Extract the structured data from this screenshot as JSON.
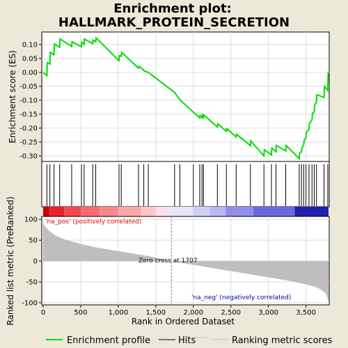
{
  "title_line1": "Enrichment plot:",
  "title_line2": "HALLMARK_PROTEIN_SECRETION",
  "zero_cross_label": "Zero cross at 1707",
  "pos_label": "'na_pos' (positively correlated)",
  "neg_label": "'na_neg' (negatively correlated)",
  "legend": {
    "enrichment": "Enrichment profile",
    "hits": "Hits",
    "ranking": "Ranking metric scores"
  },
  "colors": {
    "enrichment_line": "#00dd00",
    "metric_fill": "#bebebe",
    "pos_text": "#dd0000",
    "neg_text": "#0000aa",
    "zero_line": "#808080"
  },
  "chart_data": [
    {
      "type": "line",
      "name": "enrichment-profile",
      "ylabel": "Enrichment score (ES)",
      "xlim": [
        0,
        3800
      ],
      "ylim": [
        -0.32,
        0.145
      ],
      "yticks": [
        0.1,
        0.05,
        0.0,
        -0.05,
        -0.1,
        -0.15,
        -0.2,
        -0.25,
        -0.3
      ],
      "ytick_labels": [
        "0.10",
        "0.05",
        "0.00",
        "-0.05",
        "-0.10",
        "-0.15",
        "-0.20",
        "-0.25",
        "-0.30"
      ],
      "x": [
        0,
        50,
        55,
        90,
        95,
        145,
        150,
        220,
        225,
        380,
        385,
        510,
        515,
        545,
        550,
        660,
        665,
        700,
        705,
        1010,
        1015,
        1040,
        1045,
        1270,
        1275,
        1340,
        1345,
        1400,
        1750,
        1820,
        2000,
        2085,
        2090,
        2115,
        2120,
        2135,
        2140,
        2320,
        2325,
        2440,
        2445,
        2570,
        2575,
        2760,
        2765,
        2940,
        2945,
        3040,
        3045,
        3100,
        3105,
        3230,
        3235,
        3410,
        3415,
        3440,
        3445,
        3470,
        3475,
        3500,
        3505,
        3540,
        3545,
        3580,
        3585,
        3610,
        3615,
        3640,
        3645,
        3740,
        3745,
        3790,
        3795
      ],
      "y": [
        0.0,
        -0.012,
        0.035,
        0.03,
        0.072,
        0.063,
        0.102,
        0.09,
        0.12,
        0.093,
        0.11,
        0.092,
        0.108,
        0.1,
        0.12,
        0.103,
        0.116,
        0.11,
        0.124,
        0.042,
        0.06,
        0.058,
        0.072,
        0.015,
        0.022,
        0.008,
        0.005,
        0.0,
        -0.072,
        -0.098,
        -0.143,
        -0.163,
        -0.156,
        -0.163,
        -0.153,
        -0.162,
        -0.153,
        -0.196,
        -0.185,
        -0.212,
        -0.202,
        -0.232,
        -0.222,
        -0.263,
        -0.246,
        -0.3,
        -0.278,
        -0.296,
        -0.272,
        -0.285,
        -0.262,
        -0.282,
        -0.262,
        -0.31,
        -0.29,
        -0.285,
        -0.272,
        -0.26,
        -0.245,
        -0.235,
        -0.215,
        -0.205,
        -0.185,
        -0.17,
        -0.148,
        -0.142,
        -0.118,
        -0.106,
        -0.08,
        -0.09,
        -0.05,
        -0.065,
        0.0
      ]
    },
    {
      "type": "scatter",
      "name": "hits",
      "hit_positions": [
        50,
        90,
        145,
        220,
        380,
        510,
        545,
        660,
        700,
        1010,
        1040,
        1270,
        1340,
        1400,
        1750,
        1820,
        2000,
        2085,
        2115,
        2135,
        2320,
        2440,
        2570,
        2760,
        2940,
        3040,
        3100,
        3230,
        3410,
        3440,
        3470,
        3500,
        3540,
        3580,
        3610,
        3640,
        3740,
        3790
      ]
    },
    {
      "type": "area",
      "name": "ranking-metric",
      "xlabel": "Rank in Ordered Dataset",
      "ylabel": "Ranked list metric (PreRanked)",
      "xlim": [
        0,
        3800
      ],
      "ylim": [
        -105,
        107
      ],
      "yticks": [
        100,
        50,
        0,
        -50,
        -100
      ],
      "ytick_labels": [
        "100",
        "50",
        "0",
        "-50",
        "-100"
      ],
      "xticks": [
        0,
        500,
        1000,
        1500,
        2000,
        2500,
        3000,
        3500
      ],
      "xtick_labels": [
        "0",
        "500",
        "1,000",
        "1,500",
        "2,000",
        "2,500",
        "3,000",
        "3,500"
      ],
      "zero_cross": 1707,
      "x": [
        0,
        10,
        30,
        60,
        100,
        150,
        200,
        300,
        400,
        500,
        600,
        700,
        800,
        900,
        1000,
        1100,
        1200,
        1300,
        1400,
        1500,
        1600,
        1707,
        1800,
        1900,
        2000,
        2100,
        2200,
        2300,
        2400,
        2500,
        2600,
        2700,
        2800,
        2900,
        3000,
        3100,
        3200,
        3300,
        3400,
        3500,
        3600,
        3650,
        3700,
        3740,
        3770,
        3790,
        3800
      ],
      "y": [
        95,
        88,
        82,
        76,
        70,
        63,
        58,
        51,
        46,
        41,
        37,
        33,
        30,
        27,
        24,
        21,
        18,
        15,
        12,
        8,
        4,
        0,
        -3,
        -6,
        -9,
        -12,
        -15,
        -18,
        -21,
        -24,
        -27,
        -30,
        -33,
        -36,
        -39,
        -42,
        -45,
        -48,
        -52,
        -56,
        -61,
        -64,
        -69,
        -74,
        -80,
        -90,
        -98
      ]
    },
    {
      "type": "heatmap",
      "name": "rank-color-bar",
      "bins": [
        {
          "start": 0,
          "end": 80,
          "color": "#cc0000"
        },
        {
          "start": 80,
          "end": 280,
          "color": "#e8222b"
        },
        {
          "start": 280,
          "end": 500,
          "color": "#f04a50"
        },
        {
          "start": 500,
          "end": 750,
          "color": "#f56a6e"
        },
        {
          "start": 750,
          "end": 1000,
          "color": "#f8878a"
        },
        {
          "start": 1000,
          "end": 1300,
          "color": "#fba6a8"
        },
        {
          "start": 1300,
          "end": 1500,
          "color": "#fdc6c8"
        },
        {
          "start": 1500,
          "end": 1707,
          "color": "#fde0f0"
        },
        {
          "start": 1707,
          "end": 2000,
          "color": "#e4e4fa"
        },
        {
          "start": 2000,
          "end": 2220,
          "color": "#d0d0f6"
        },
        {
          "start": 2220,
          "end": 2430,
          "color": "#b8b8f2"
        },
        {
          "start": 2430,
          "end": 2800,
          "color": "#8f8fea"
        },
        {
          "start": 2800,
          "end": 3350,
          "color": "#6a6ae0"
        },
        {
          "start": 3350,
          "end": 3800,
          "color": "#2020b0"
        }
      ]
    }
  ]
}
